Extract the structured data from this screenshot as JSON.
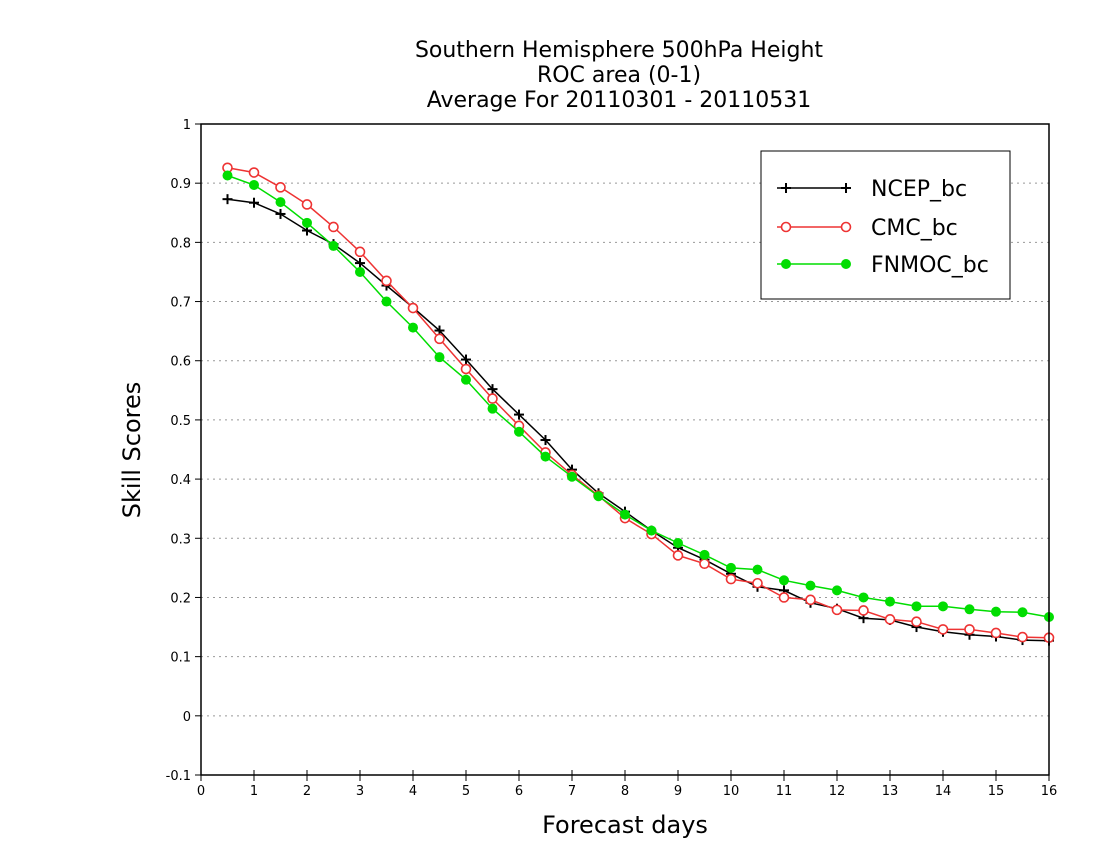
{
  "chart_data": {
    "type": "line",
    "title": [
      "Southern Hemisphere 500hPa Height",
      "ROC area (0-1)",
      "Average For 20110301 - 20110531"
    ],
    "xlabel": "Forecast days",
    "ylabel": "Skill Scores",
    "xlim": [
      0,
      16
    ],
    "ylim": [
      -0.1,
      1
    ],
    "xticks": [
      0,
      1,
      2,
      3,
      4,
      5,
      6,
      7,
      8,
      9,
      10,
      11,
      12,
      13,
      14,
      15,
      16
    ],
    "xtick_labels": [
      "0",
      "1",
      "2",
      "3",
      "4",
      "5",
      "6",
      "7",
      "8",
      "9",
      "10",
      "11",
      "12",
      "13",
      "14",
      "15",
      "16"
    ],
    "yticks": [
      -0.1,
      0,
      0.1,
      0.2,
      0.3,
      0.4,
      0.5,
      0.6,
      0.7,
      0.8,
      0.9,
      1
    ],
    "ytick_labels": [
      "-0.1",
      "0",
      "0.1",
      "0.2",
      "0.3",
      "0.4",
      "0.5",
      "0.6",
      "0.7",
      "0.8",
      "0.9",
      "1"
    ],
    "grid": "horizontal dotted",
    "legend_position": "top-right",
    "x": [
      0.5,
      1,
      1.5,
      2,
      2.5,
      3,
      3.5,
      4,
      4.5,
      5,
      5.5,
      6,
      6.5,
      7,
      7.5,
      8,
      8.5,
      9,
      9.5,
      10,
      10.5,
      11,
      11.5,
      12,
      12.5,
      13,
      13.5,
      14,
      14.5,
      15,
      15.5,
      16
    ],
    "series": [
      {
        "name": "NCEP_bc",
        "color": "#000000",
        "marker": "plus",
        "values": [
          0.873,
          0.867,
          0.848,
          0.82,
          0.797,
          0.765,
          0.727,
          0.69,
          0.651,
          0.602,
          0.552,
          0.509,
          0.466,
          0.416,
          0.376,
          0.345,
          0.313,
          0.284,
          0.264,
          0.24,
          0.218,
          0.212,
          0.191,
          0.181,
          0.165,
          0.162,
          0.15,
          0.142,
          0.137,
          0.134,
          0.128,
          0.127
        ]
      },
      {
        "name": "CMC_bc",
        "color": "#ee3333",
        "marker": "open-circle",
        "values": [
          0.926,
          0.918,
          0.893,
          0.864,
          0.826,
          0.784,
          0.735,
          0.689,
          0.637,
          0.586,
          0.536,
          0.49,
          0.445,
          0.407,
          0.372,
          0.334,
          0.307,
          0.271,
          0.257,
          0.231,
          0.224,
          0.2,
          0.196,
          0.179,
          0.178,
          0.163,
          0.159,
          0.146,
          0.146,
          0.14,
          0.133,
          0.132
        ]
      },
      {
        "name": "FNMOC_bc",
        "color": "#00dd00",
        "marker": "filled-circle",
        "values": [
          0.913,
          0.897,
          0.868,
          0.833,
          0.794,
          0.75,
          0.7,
          0.656,
          0.606,
          0.568,
          0.519,
          0.48,
          0.438,
          0.404,
          0.371,
          0.34,
          0.313,
          0.292,
          0.272,
          0.25,
          0.247,
          0.229,
          0.22,
          0.212,
          0.2,
          0.193,
          0.185,
          0.185,
          0.18,
          0.176,
          0.175,
          0.167
        ]
      }
    ]
  }
}
